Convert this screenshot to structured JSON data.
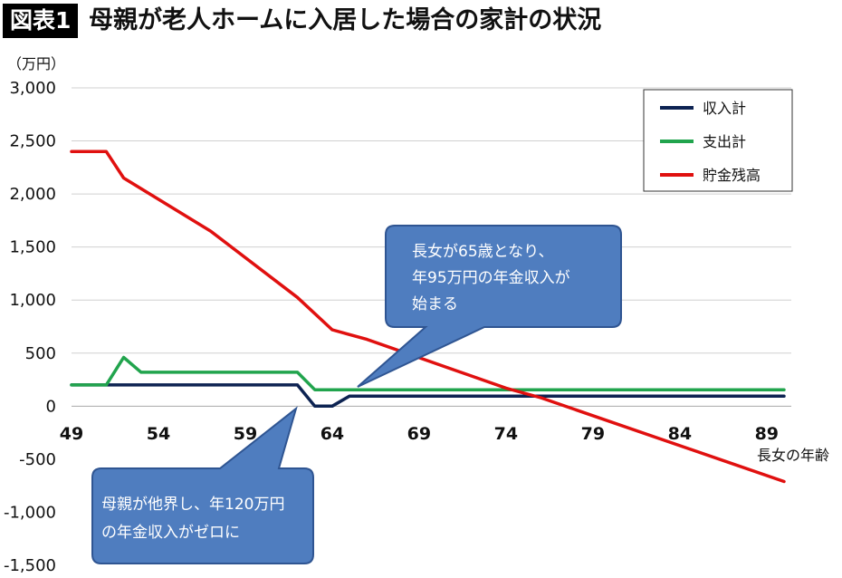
{
  "header": {
    "figure_label": "図表1",
    "title": "母親が老人ホームに入居した場合の家計の状況"
  },
  "chart_data": {
    "type": "line",
    "unit_label": "（万円）",
    "xlabel": "長女の年齢",
    "ylim": [
      -1500,
      3000
    ],
    "xlim": [
      49,
      90
    ],
    "y_ticks": [
      3000,
      2500,
      2000,
      1500,
      1000,
      500,
      0,
      -500,
      -1000,
      -1500
    ],
    "y_tick_labels": [
      "3,000",
      "2,500",
      "2,000",
      "1,500",
      "1,000",
      "500",
      "0",
      "-500",
      "-1,000",
      "-1,500"
    ],
    "x_ticks": [
      49,
      54,
      59,
      64,
      69,
      74,
      79,
      84,
      89
    ],
    "x_tick_labels": [
      "49",
      "54",
      "59",
      "64",
      "69",
      "74",
      "79",
      "84",
      "89"
    ],
    "grid": true,
    "legend_position": "top-right",
    "series": [
      {
        "name": "収入計",
        "color": "#0d2352",
        "points": [
          [
            49,
            200
          ],
          [
            51,
            200
          ],
          [
            62,
            200
          ],
          [
            63,
            0
          ],
          [
            64,
            0
          ],
          [
            65,
            95
          ],
          [
            90,
            95
          ]
        ]
      },
      {
        "name": "支出計",
        "color": "#21a44d",
        "points": [
          [
            49,
            200
          ],
          [
            51,
            200
          ],
          [
            52,
            460
          ],
          [
            53,
            320
          ],
          [
            62,
            320
          ],
          [
            63,
            155
          ],
          [
            90,
            155
          ]
        ]
      },
      {
        "name": "貯金残高",
        "color": "#e0100f",
        "points": [
          [
            49,
            2400
          ],
          [
            51,
            2400
          ],
          [
            52,
            2150
          ],
          [
            57,
            1650
          ],
          [
            62,
            1025
          ],
          [
            64,
            720
          ],
          [
            66,
            630
          ],
          [
            74,
            170
          ],
          [
            76,
            80
          ],
          [
            90,
            -710
          ]
        ]
      }
    ],
    "annotations": [
      {
        "lines": [
          "長女が65歳となり、",
          "年95万円の年金収入が",
          "始まる"
        ]
      },
      {
        "lines": [
          "母親が他界し、年120万円",
          "の年金収入がゼロに"
        ]
      }
    ]
  }
}
